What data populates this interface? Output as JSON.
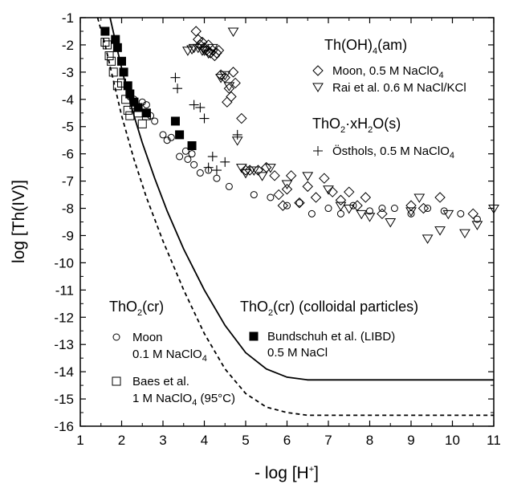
{
  "chart_data": {
    "type": "scatter",
    "xlabel": "- log [H+]",
    "ylabel": "log [Th(IV)]",
    "xlim": [
      1,
      11
    ],
    "ylim": [
      -16,
      -1
    ],
    "xticks": [
      "1",
      "2",
      "3",
      "4",
      "5",
      "6",
      "7",
      "8",
      "9",
      "10",
      "11"
    ],
    "yticks": [
      "-1",
      "-2",
      "-3",
      "-4",
      "-5",
      "-6",
      "-7",
      "-8",
      "-9",
      "-10",
      "-11",
      "-12",
      "-13",
      "-14",
      "-15",
      "-16"
    ],
    "grid": false,
    "headings": {
      "thoh4": "Th(OH)4(am)",
      "tho2_xh2o": "ThO2·xH2O(s)",
      "tho2_cr": "ThO2(cr)",
      "tho2_colloid": "ThO2(cr) (colloidal particles)"
    },
    "legend": {
      "moon_diamond": "Moon, 0.5 M NaClO4",
      "rai": "Rai et al. 0.6 M NaCl/KCl",
      "osthols": "Östhols, 0.5 M NaClO4",
      "moon_circle_1": "Moon",
      "moon_circle_2": "0.1 M NaClO4",
      "baes_1": "Baes et al.",
      "baes_2": "1 M NaClO4 (95°C)",
      "bund_1": "Bundschuh et al. (LIBD)",
      "bund_2": "0.5 M NaCl"
    },
    "series": [
      {
        "name": "Moon, 0.5 M NaClO4",
        "marker": "diamond",
        "x": [
          3.8,
          3.85,
          3.9,
          3.95,
          4.0,
          4.05,
          4.1,
          4.15,
          4.2,
          4.25,
          4.3,
          4.35,
          4.4,
          4.5,
          4.6,
          4.7,
          4.55,
          4.65,
          4.75,
          4.9,
          5.0,
          5.1,
          5.3,
          5.5,
          5.7,
          5.8,
          5.9,
          6.0,
          6.1,
          6.3,
          6.5,
          6.7,
          6.9,
          7.1,
          7.3,
          7.5,
          7.7,
          7.9,
          8.3,
          9.0,
          9.3,
          9.7,
          10.5
        ],
        "y": [
          -1.5,
          -1.8,
          -2.0,
          -1.9,
          -2.1,
          -2.2,
          -2.0,
          -2.3,
          -2.2,
          -2.4,
          -2.3,
          -2.2,
          -3.1,
          -3.2,
          -3.6,
          -3.0,
          -4.1,
          -3.9,
          -3.4,
          -4.7,
          -6.6,
          -6.6,
          -6.6,
          -6.5,
          -6.8,
          -7.5,
          -7.9,
          -7.3,
          -6.8,
          -7.8,
          -7.2,
          -7.6,
          -6.9,
          -7.4,
          -7.7,
          -7.4,
          -7.9,
          -7.6,
          -8.2,
          -7.9,
          -8.0,
          -7.6,
          -8.2
        ]
      },
      {
        "name": "Rai et al. 0.6 M NaCl/KCl",
        "marker": "triangle-down",
        "x": [
          3.6,
          3.7,
          3.75,
          3.85,
          3.95,
          4.0,
          4.1,
          4.2,
          4.4,
          4.5,
          4.6,
          4.7,
          4.8,
          4.9,
          5.0,
          5.2,
          5.4,
          5.6,
          6.0,
          6.5,
          7.0,
          7.3,
          7.5,
          7.8,
          8.0,
          8.5,
          9.0,
          9.2,
          9.4,
          9.7,
          9.9,
          10.3,
          10.6,
          11.0
        ],
        "y": [
          -2.2,
          -2.15,
          -2.1,
          -2.1,
          -2.2,
          -2.2,
          -2.3,
          -2.1,
          -3.2,
          -3.1,
          -3.5,
          -1.5,
          -5.5,
          -6.5,
          -6.7,
          -6.6,
          -6.8,
          -6.5,
          -7.1,
          -6.8,
          -7.3,
          -7.9,
          -8.0,
          -8.2,
          -8.3,
          -8.5,
          -8.1,
          -7.6,
          -9.1,
          -8.8,
          -8.2,
          -8.9,
          -8.6,
          -8.0
        ]
      },
      {
        "name": "Östhols, 0.5 M NaClO4",
        "marker": "plus",
        "x": [
          3.3,
          3.35,
          3.75,
          3.9,
          4.0,
          4.1,
          4.2,
          4.3,
          4.5,
          4.8
        ],
        "y": [
          -3.2,
          -3.6,
          -4.2,
          -4.3,
          -4.7,
          -6.5,
          -6.1,
          -6.6,
          -6.3,
          -5.3
        ]
      },
      {
        "name": "Moon 0.1 M NaClO4",
        "marker": "circle",
        "x": [
          2.2,
          2.3,
          2.4,
          2.5,
          2.6,
          2.7,
          2.8,
          3.0,
          3.1,
          3.2,
          3.4,
          3.55,
          3.6,
          3.7,
          3.75,
          3.9,
          4.1,
          4.3,
          4.6,
          5.2,
          5.6,
          6.0,
          6.3,
          6.6,
          7.0,
          7.3,
          7.6,
          8.0,
          8.3,
          8.6,
          9.0,
          9.4,
          9.8,
          10.2,
          10.6
        ],
        "y": [
          -3.9,
          -4.0,
          -4.3,
          -4.1,
          -4.2,
          -4.6,
          -4.8,
          -5.3,
          -5.5,
          -5.4,
          -6.1,
          -5.9,
          -6.2,
          -6.0,
          -6.4,
          -6.7,
          -6.6,
          -6.9,
          -7.2,
          -7.5,
          -7.6,
          -7.9,
          -7.8,
          -8.2,
          -8.0,
          -8.2,
          -7.9,
          -8.1,
          -8.0,
          -8.0,
          -8.2,
          -8.0,
          -8.1,
          -8.2,
          -8.4
        ]
      },
      {
        "name": "Baes et al. 1 M NaClO4 (95°C)",
        "marker": "square",
        "x": [
          1.6,
          1.65,
          1.7,
          1.75,
          1.8,
          1.9,
          2.0,
          2.1,
          2.15,
          2.2,
          2.3,
          2.4,
          2.5,
          2.6
        ],
        "y": [
          -1.9,
          -2.0,
          -2.4,
          -2.6,
          -3.0,
          -3.5,
          -3.4,
          -4.0,
          -4.4,
          -4.6,
          -4.2,
          -4.5,
          -4.9,
          -4.6
        ]
      },
      {
        "name": "Bundschuh et al. (LIBD) 0.5 M NaCl",
        "marker": "square-filled",
        "x": [
          1.6,
          1.85,
          1.9,
          2.0,
          2.05,
          2.15,
          2.2,
          2.3,
          2.4,
          2.6,
          3.3,
          3.4,
          3.7
        ],
        "y": [
          -1.5,
          -1.8,
          -2.1,
          -2.6,
          -3.0,
          -3.5,
          -3.8,
          -4.1,
          -4.3,
          -4.5,
          -4.8,
          -5.3,
          -5.7
        ]
      }
    ],
    "curves": [
      {
        "style": "solid",
        "x": [
          1.72,
          1.9,
          2.1,
          2.3,
          2.5,
          2.8,
          3.1,
          3.5,
          4.0,
          4.5,
          5.0,
          5.5,
          6.0,
          6.5,
          7.0,
          7.5,
          11.0
        ],
        "y": [
          -1.0,
          -2.2,
          -3.5,
          -4.6,
          -5.6,
          -6.9,
          -8.1,
          -9.5,
          -11.0,
          -12.3,
          -13.3,
          -13.9,
          -14.2,
          -14.3,
          -14.3,
          -14.3,
          -14.3
        ]
      },
      {
        "style": "dashed",
        "x": [
          1.42,
          1.6,
          1.8,
          2.0,
          2.3,
          2.6,
          3.0,
          3.5,
          4.0,
          4.5,
          5.0,
          5.5,
          6.0,
          6.5,
          7.0,
          7.5,
          11.0
        ],
        "y": [
          -1.0,
          -2.0,
          -3.3,
          -4.6,
          -6.2,
          -7.6,
          -9.2,
          -11.0,
          -12.6,
          -13.9,
          -14.8,
          -15.3,
          -15.5,
          -15.6,
          -15.6,
          -15.6,
          -15.6
        ]
      }
    ]
  }
}
